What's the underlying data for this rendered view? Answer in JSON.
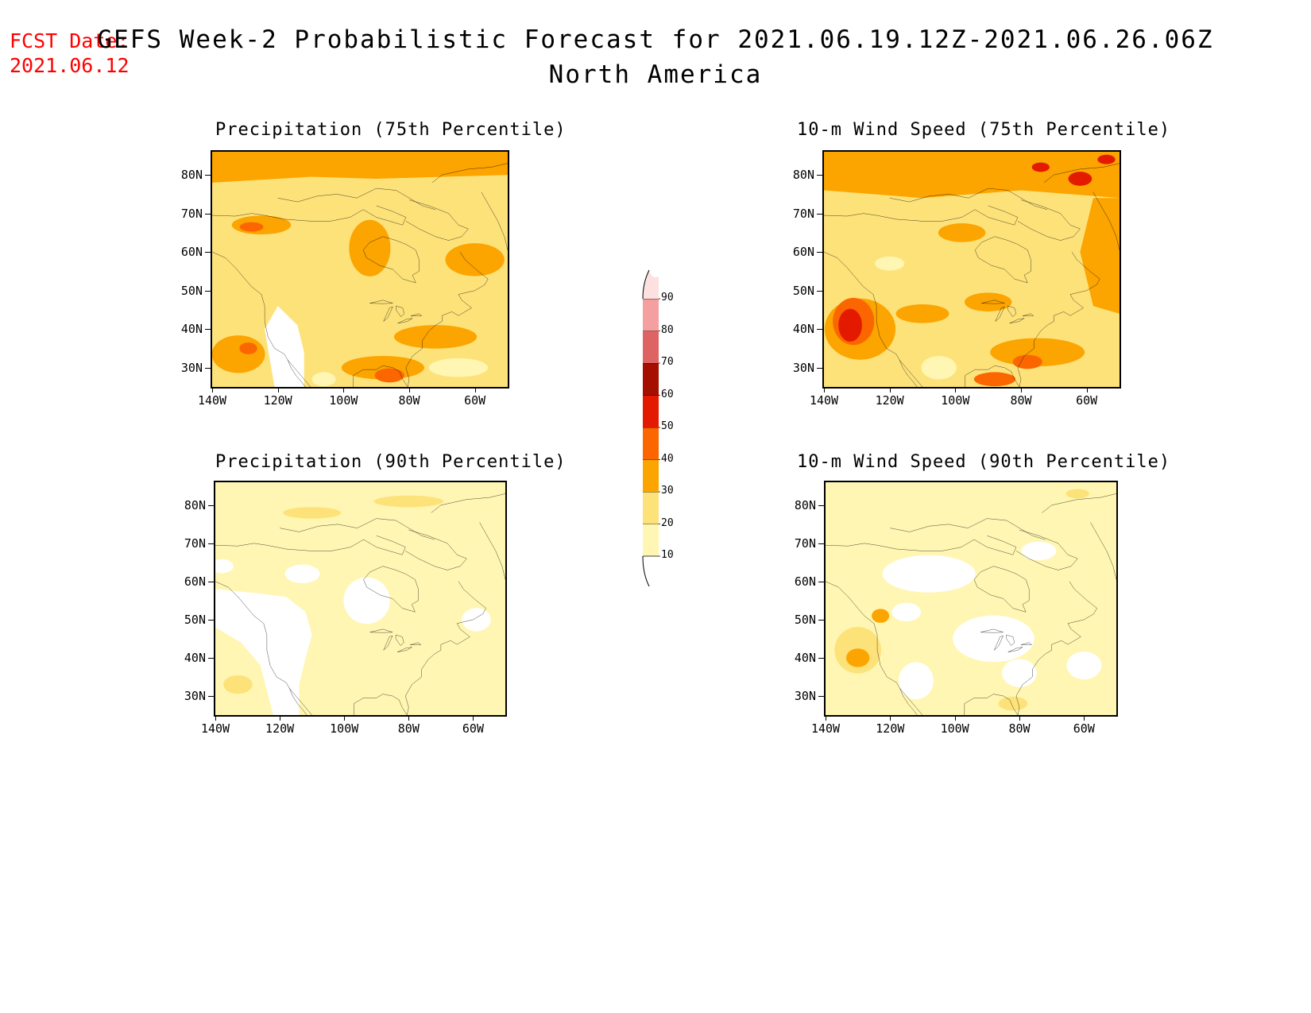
{
  "header": {
    "fcst_label": "FCST Date:",
    "fcst_date": "2021.06.12",
    "title": "GEFS Week-2 Probabilistic Forecast for 2021.06.19.12Z-2021.06.26.06Z",
    "subtitle": "North America"
  },
  "colors": {
    "lt10": "#ffffff",
    "c10_20": "#fff6b3",
    "c20_30": "#fde27a",
    "c30_40": "#fca400",
    "c40_50": "#fc6600",
    "c50_60": "#e41a00",
    "c60_70": "#a50f00",
    "c70_80": "#de6464",
    "c80_90": "#f5a0a0",
    "c90": "#fde0e0"
  },
  "axes": {
    "lat_labels": [
      "80N",
      "70N",
      "60N",
      "50N",
      "40N",
      "30N"
    ],
    "lon_labels": [
      "140W",
      "120W",
      "100W",
      "80W",
      "60W"
    ]
  },
  "legend": {
    "labels": [
      "90",
      "80",
      "70",
      "60",
      "50",
      "40",
      "30",
      "20",
      "10"
    ]
  },
  "panels": [
    {
      "title": "Precipitation (75th Percentile)",
      "field": "precip75"
    },
    {
      "title": "10-m Wind Speed (75th Percentile)",
      "field": "wind75"
    },
    {
      "title": "Precipitation (90th Percentile)",
      "field": "precip90"
    },
    {
      "title": "10-m Wind Speed (90th Percentile)",
      "field": "wind90"
    }
  ]
}
